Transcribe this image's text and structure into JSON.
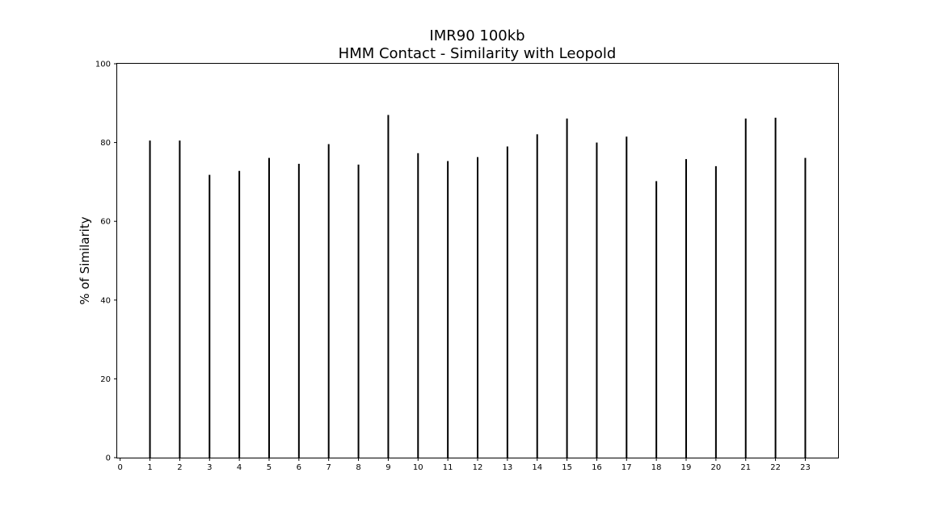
{
  "chart_data": {
    "type": "bar",
    "title": "IMR90 100kb",
    "subtitle": "HMM Contact - Similarity with Leopold",
    "xlabel": "",
    "ylabel": "% of Similarity",
    "categories": [
      "1",
      "2",
      "3",
      "4",
      "5",
      "6",
      "7",
      "8",
      "9",
      "10",
      "11",
      "12",
      "13",
      "14",
      "15",
      "16",
      "17",
      "18",
      "19",
      "20",
      "21",
      "22",
      "23"
    ],
    "x_ticks": [
      "0",
      "1",
      "2",
      "3",
      "4",
      "5",
      "6",
      "7",
      "8",
      "9",
      "10",
      "11",
      "12",
      "13",
      "14",
      "15",
      "16",
      "17",
      "18",
      "19",
      "20",
      "21",
      "22",
      "23"
    ],
    "y_ticks": [
      "0",
      "20",
      "40",
      "60",
      "80",
      "100"
    ],
    "values": [
      80.5,
      80.5,
      71.8,
      72.8,
      76.1,
      74.6,
      79.6,
      74.4,
      87.0,
      77.3,
      75.3,
      76.3,
      79.0,
      82.1,
      86.1,
      80.0,
      81.5,
      70.2,
      75.8,
      74.0,
      86.1,
      86.3,
      76.1
    ],
    "xlim": [
      -0.1,
      24.1
    ],
    "ylim": [
      0,
      100
    ],
    "grid": false,
    "bar_color": "#000000"
  }
}
